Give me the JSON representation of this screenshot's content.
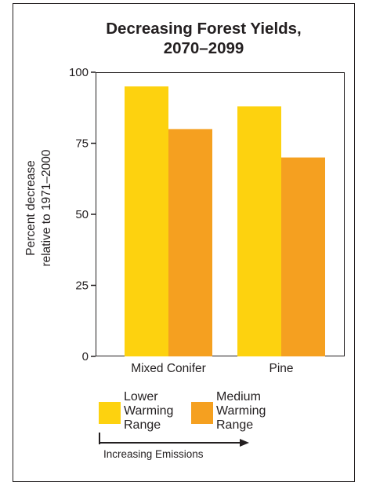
{
  "chart_data": {
    "type": "bar",
    "title": "Decreasing Forest Yields,\n2070–2099",
    "ylabel": "Percent decrease\nrelative to 1971–2000",
    "xlabel": "",
    "categories": [
      "Mixed Conifer",
      "Pine"
    ],
    "series": [
      {
        "name": "Lower\nWarming\nRange",
        "values": [
          95,
          88
        ],
        "color": "#fdd20f"
      },
      {
        "name": "Medium\nWarming\nRange",
        "values": [
          80,
          70
        ],
        "color": "#f5a020"
      }
    ],
    "ylim": [
      0,
      100
    ],
    "yticks": [
      0,
      25,
      50,
      75,
      100
    ],
    "grid": false,
    "legend": "bottom"
  },
  "annotation": {
    "arrow_label": "Increasing Emissions"
  }
}
